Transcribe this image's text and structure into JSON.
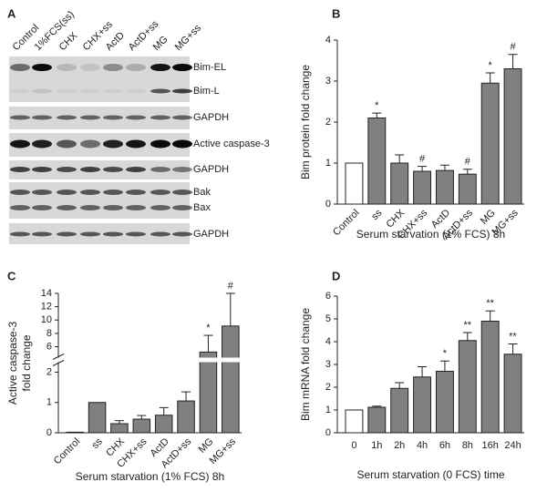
{
  "blot": {
    "label": "A",
    "lanes": [
      "Control",
      "1%FCS(ss)",
      "CHX",
      "CHX+ss",
      "ActD",
      "ActD+ss",
      "MG",
      "MG+ss"
    ],
    "bands": [
      "Bim-EL",
      "Bim-L",
      "GAPDH",
      "Active caspase-3",
      "GAPDH",
      "Bak",
      "Bax",
      "GAPDH"
    ]
  },
  "chart_data": [
    {
      "type": "bar",
      "label": "B",
      "categories": [
        "Control",
        "ss",
        "CHX",
        "CHX+ss",
        "ActD",
        "ActD+ss",
        "MG",
        "MG+ss"
      ],
      "values": [
        1,
        2.1,
        1.0,
        0.8,
        0.82,
        0.73,
        2.95,
        3.3
      ],
      "errors": [
        0,
        0.12,
        0.2,
        0.12,
        0.13,
        0.12,
        0.25,
        0.35
      ],
      "annotations": [
        null,
        "*",
        null,
        "#",
        null,
        "#",
        "*",
        "#"
      ],
      "colors": [
        "#ffffff",
        "#808080",
        "#808080",
        "#808080",
        "#808080",
        "#808080",
        "#808080",
        "#808080"
      ],
      "ylim": [
        0,
        4
      ],
      "yticks": [
        0,
        1,
        2,
        3,
        4
      ],
      "ylabel": [
        "Bim protein fold change"
      ],
      "xlabel": "Serum starvation (1% FCS) 8h",
      "rotate_labels": true
    },
    {
      "type": "bar",
      "label": "C",
      "categories": [
        "Control",
        "ss",
        "CHX",
        "CHX+ss",
        "ActD",
        "ActD+ss",
        "MG",
        "MG+ss"
      ],
      "values": [
        0.02,
        1.0,
        0.3,
        0.45,
        0.58,
        1.05,
        5.2,
        9.1
      ],
      "errors": [
        0,
        0,
        0.1,
        0.12,
        0.25,
        0.3,
        2.5,
        4.9
      ],
      "annotations": [
        null,
        null,
        null,
        null,
        null,
        null,
        "*",
        "#"
      ],
      "colors": [
        "#808080",
        "#808080",
        "#808080",
        "#808080",
        "#808080",
        "#808080",
        "#808080",
        "#808080"
      ],
      "ylim": [
        0,
        14
      ],
      "ybreak": [
        2.3,
        4.5
      ],
      "yticks": [
        0,
        1,
        2,
        6,
        8,
        10,
        12,
        14
      ],
      "ylabel": [
        "Active caspase-3",
        "fold change"
      ],
      "xlabel": "Serum starvation (1% FCS) 8h",
      "rotate_labels": true
    },
    {
      "type": "bar",
      "label": "D",
      "categories": [
        "0",
        "1h",
        "2h",
        "4h",
        "6h",
        "8h",
        "16h",
        "24h"
      ],
      "values": [
        1,
        1.12,
        1.95,
        2.45,
        2.7,
        4.05,
        4.9,
        3.45
      ],
      "errors": [
        0,
        0.05,
        0.25,
        0.45,
        0.45,
        0.35,
        0.45,
        0.45
      ],
      "annotations": [
        null,
        null,
        null,
        null,
        "*",
        "**",
        "**",
        "**"
      ],
      "colors": [
        "#ffffff",
        "#808080",
        "#808080",
        "#808080",
        "#808080",
        "#808080",
        "#808080",
        "#808080"
      ],
      "ylim": [
        0,
        6
      ],
      "yticks": [
        0,
        1,
        2,
        3,
        4,
        5,
        6
      ],
      "ylabel": [
        "Bim mRNA fold change"
      ],
      "xlabel": "Serum starvation (0 FCS) time",
      "rotate_labels": false
    }
  ]
}
